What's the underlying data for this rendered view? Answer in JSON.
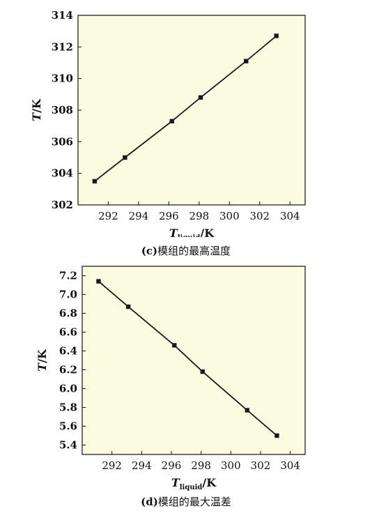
{
  "chart_data": [
    {
      "type": "line",
      "ylabel_var": "T",
      "ylabel_unit": "/K",
      "xlabel_var": "T",
      "xlabel_sub": "liquid",
      "xlabel_unit": "/K",
      "caption_label": "(c)",
      "caption_text": "模组的最高温度",
      "xlim": [
        290,
        305
      ],
      "ylim": [
        302,
        314
      ],
      "x_ticks": [
        292,
        294,
        296,
        298,
        300,
        302,
        304
      ],
      "y_ticks": [
        302,
        304,
        306,
        308,
        310,
        312,
        314
      ],
      "y_tick_labels": [
        "302",
        "304",
        "306",
        "308",
        "310",
        "312",
        "314"
      ],
      "grid": false,
      "series": [
        {
          "x": [
            291.1,
            293.1,
            296.2,
            298.1,
            301.1,
            303.1
          ],
          "y": [
            303.5,
            305.0,
            307.3,
            308.8,
            311.1,
            312.7
          ]
        }
      ]
    },
    {
      "type": "line",
      "ylabel_var": "T",
      "ylabel_unit": "/K",
      "xlabel_var": "T",
      "xlabel_sub": "liquid",
      "xlabel_unit": "/K",
      "caption_label": "(d)",
      "caption_text": "模组的最大温差",
      "xlim": [
        290,
        305
      ],
      "ylim": [
        5.3,
        7.3
      ],
      "x_ticks": [
        292,
        294,
        296,
        298,
        300,
        302,
        304
      ],
      "y_ticks": [
        5.4,
        5.6,
        5.8,
        6.0,
        6.2,
        6.4,
        6.6,
        6.8,
        7.0,
        7.2
      ],
      "y_tick_labels": [
        "5.4",
        "5.6",
        "5.8",
        "6.0",
        "6.2",
        "6.4",
        "6.6",
        "6.8",
        "7.0",
        "7.2"
      ],
      "grid": false,
      "series": [
        {
          "x": [
            291.1,
            293.1,
            296.2,
            298.1,
            301.1,
            303.1
          ],
          "y": [
            7.14,
            6.87,
            6.46,
            6.18,
            5.77,
            5.5
          ]
        }
      ]
    }
  ],
  "colors": {
    "plot_bg": "#fbfbe0",
    "line": "#1a1a1a",
    "marker": "#1a1a1a"
  }
}
